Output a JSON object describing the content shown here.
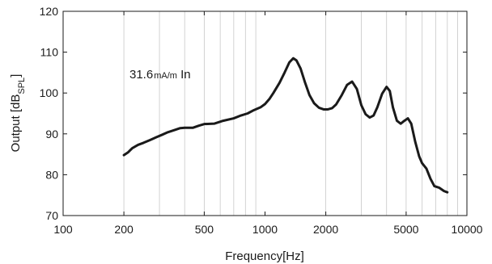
{
  "chart_data": {
    "type": "line",
    "title": "",
    "xlabel": "Frequency[Hz]",
    "ylabel": {
      "prefix": "Output [dB",
      "subscript": "SPL",
      "suffix": "]"
    },
    "x_scale": "log",
    "xlim": [
      100,
      10000
    ],
    "ylim": [
      70,
      120
    ],
    "x_ticks": [
      {
        "value": 100,
        "label": "100"
      },
      {
        "value": 200,
        "label": "200"
      },
      {
        "value": 500,
        "label": "500"
      },
      {
        "value": 1000,
        "label": "1000"
      },
      {
        "value": 2000,
        "label": "2000"
      },
      {
        "value": 5000,
        "label": "5000"
      },
      {
        "value": 10000,
        "label": "10000"
      }
    ],
    "y_ticks": [
      {
        "value": 70,
        "label": "70"
      },
      {
        "value": 80,
        "label": "80"
      },
      {
        "value": 90,
        "label": "90"
      },
      {
        "value": 100,
        "label": "100"
      },
      {
        "value": 110,
        "label": "110"
      },
      {
        "value": 120,
        "label": "120"
      }
    ],
    "grid": "vertical minor log grid",
    "annotation": {
      "main": "31.6",
      "unit": "mA/m",
      "suffix": " In"
    },
    "series": [
      {
        "color": "#1a1a1a",
        "points": [
          [
            200,
            84.8
          ],
          [
            210,
            85.5
          ],
          [
            220,
            86.5
          ],
          [
            235,
            87.3
          ],
          [
            250,
            87.8
          ],
          [
            270,
            88.5
          ],
          [
            290,
            89.2
          ],
          [
            310,
            89.8
          ],
          [
            330,
            90.4
          ],
          [
            360,
            91.0
          ],
          [
            380,
            91.4
          ],
          [
            400,
            91.5
          ],
          [
            440,
            91.5
          ],
          [
            470,
            92.0
          ],
          [
            500,
            92.4
          ],
          [
            560,
            92.5
          ],
          [
            620,
            93.2
          ],
          [
            700,
            93.8
          ],
          [
            760,
            94.5
          ],
          [
            820,
            95.0
          ],
          [
            880,
            95.8
          ],
          [
            950,
            96.5
          ],
          [
            1000,
            97.3
          ],
          [
            1050,
            98.5
          ],
          [
            1100,
            100.0
          ],
          [
            1180,
            102.5
          ],
          [
            1250,
            105.0
          ],
          [
            1320,
            107.5
          ],
          [
            1380,
            108.5
          ],
          [
            1430,
            108.0
          ],
          [
            1500,
            106.0
          ],
          [
            1580,
            102.5
          ],
          [
            1660,
            99.5
          ],
          [
            1750,
            97.5
          ],
          [
            1850,
            96.4
          ],
          [
            1950,
            96.0
          ],
          [
            2050,
            96.0
          ],
          [
            2150,
            96.3
          ],
          [
            2250,
            97.2
          ],
          [
            2400,
            99.5
          ],
          [
            2550,
            102.0
          ],
          [
            2700,
            102.8
          ],
          [
            2850,
            101.0
          ],
          [
            3000,
            97.0
          ],
          [
            3150,
            94.8
          ],
          [
            3300,
            94.0
          ],
          [
            3450,
            94.5
          ],
          [
            3600,
            96.5
          ],
          [
            3800,
            99.8
          ],
          [
            4000,
            101.5
          ],
          [
            4150,
            100.5
          ],
          [
            4300,
            96.5
          ],
          [
            4500,
            93.2
          ],
          [
            4700,
            92.5
          ],
          [
            4900,
            93.2
          ],
          [
            5100,
            93.8
          ],
          [
            5300,
            92.5
          ],
          [
            5550,
            88.0
          ],
          [
            5800,
            84.5
          ],
          [
            6000,
            82.8
          ],
          [
            6300,
            81.5
          ],
          [
            6600,
            79.0
          ],
          [
            6900,
            77.2
          ],
          [
            7300,
            76.8
          ],
          [
            7700,
            76.0
          ],
          [
            8000,
            75.7
          ]
        ]
      }
    ]
  }
}
